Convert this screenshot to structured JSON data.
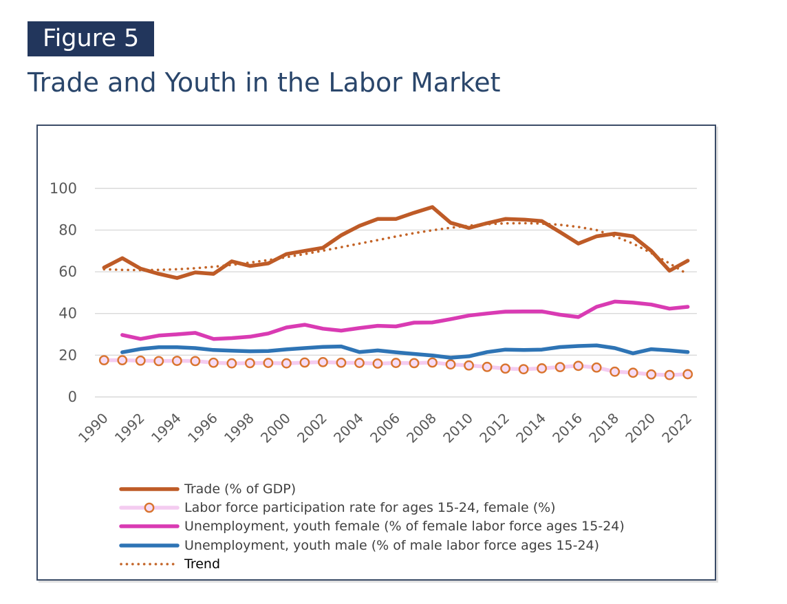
{
  "figure_label": "Figure 5",
  "title": "Trade and Youth in the Labor Market",
  "colors": {
    "badge_background": "#22365C",
    "title_text": "#2A466B",
    "chart_border": "#3A4B66",
    "gridline": "#D9D9D9",
    "axis_text": "#595959",
    "legend_text": "#3F3F3F",
    "trend_legend_text": "#000000"
  },
  "chart_data": {
    "type": "line",
    "x": [
      1990,
      1991,
      1992,
      1993,
      1994,
      1995,
      1996,
      1997,
      1998,
      1999,
      2000,
      2001,
      2002,
      2003,
      2004,
      2005,
      2006,
      2007,
      2008,
      2009,
      2010,
      2011,
      2012,
      2013,
      2014,
      2015,
      2016,
      2017,
      2018,
      2019,
      2020,
      2021,
      2022
    ],
    "x_tick_labels": [
      "1990",
      "1992",
      "1994",
      "1996",
      "1998",
      "2000",
      "2002",
      "2004",
      "2006",
      "2008",
      "2010",
      "2012",
      "2014",
      "2016",
      "2018",
      "2020",
      "2022"
    ],
    "yticks": [
      0,
      20,
      40,
      60,
      80,
      100
    ],
    "ylim": [
      0,
      100
    ],
    "grid": "horizontal",
    "legend_position": "bottom-left",
    "series": [
      {
        "name": "Trade (% of GDP)",
        "style": "solid",
        "color": "#BE5B27",
        "values": [
          62,
          66.5,
          61.5,
          59,
          57,
          59.7,
          59,
          65,
          62.8,
          64,
          68.5,
          70,
          71.5,
          77.5,
          82,
          85.3,
          85.3,
          88.3,
          91,
          83.5,
          81,
          83.3,
          85.3,
          85,
          84.3,
          79,
          73.5,
          77,
          78.3,
          77,
          70,
          60.5,
          65.3
        ]
      },
      {
        "name": "Labor force participation rate for ages 15-24, female (%)",
        "style": "line-markers",
        "color": "#F4CCF0",
        "marker_fill": "#F6DCF6",
        "marker_outline": "#D9742F",
        "values": [
          17.6,
          17.6,
          17.4,
          17.2,
          17.3,
          17.2,
          16.4,
          16.1,
          16.2,
          16.3,
          16.1,
          16.5,
          16.7,
          16.4,
          16.3,
          16,
          16.3,
          16.2,
          16.5,
          15.6,
          15.1,
          14.4,
          13.6,
          13.3,
          13.7,
          14.3,
          14.9,
          14.1,
          12.1,
          11.6,
          10.8,
          10.5,
          10.9
        ]
      },
      {
        "name": "Unemployment, youth female (% of female labor force ages 15-24)",
        "style": "solid",
        "color": "#D93BB3",
        "values": [
          null,
          29.7,
          27.8,
          29.4,
          30,
          30.7,
          27.8,
          28.2,
          28.9,
          30.4,
          33.3,
          34.6,
          32.7,
          31.8,
          33,
          34.1,
          33.8,
          35.6,
          35.7,
          37.3,
          39,
          40,
          40.9,
          41,
          41,
          39.4,
          38.3,
          43.2,
          45.7,
          45.2,
          44.3,
          42.3,
          43.2
        ]
      },
      {
        "name": "Unemployment, youth male (% of male labor force ages 15-24)",
        "style": "solid",
        "color": "#2E74B5",
        "values": [
          null,
          21.4,
          23,
          23.8,
          23.8,
          23.4,
          22.5,
          22.2,
          21.9,
          22,
          22.8,
          23.4,
          24,
          24.2,
          21.5,
          22.3,
          21.4,
          20.6,
          19.9,
          18.8,
          19.5,
          21.5,
          22.7,
          22.5,
          22.7,
          23.9,
          24.4,
          24.7,
          23.4,
          20.9,
          22.9,
          22.3,
          21.5
        ]
      },
      {
        "name": "Trend",
        "style": "dotted",
        "color": "#C36326",
        "values": [
          61.2,
          60.9,
          60.8,
          60.9,
          61.2,
          61.7,
          62.4,
          63.3,
          64.4,
          65.6,
          67,
          68.5,
          70.1,
          71.8,
          73.5,
          75.2,
          76.9,
          78.5,
          79.9,
          81.1,
          82.1,
          82.8,
          83.2,
          83.3,
          83.1,
          82.5,
          81.5,
          80,
          77,
          73.5,
          69,
          64,
          58.8
        ]
      }
    ]
  }
}
